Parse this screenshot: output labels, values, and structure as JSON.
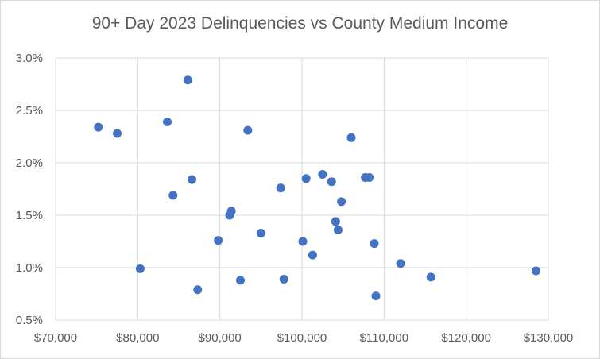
{
  "chart_data": {
    "type": "scatter",
    "title": "90+ Day 2023 Delinquencies vs County Medium Income",
    "xlabel": "",
    "ylabel": "",
    "xlim": [
      70000,
      130000
    ],
    "ylim": [
      0.005,
      0.03
    ],
    "x_ticks": [
      70000,
      80000,
      90000,
      100000,
      110000,
      120000,
      130000
    ],
    "x_tick_labels": [
      "$70,000",
      "$80,000",
      "$90,000",
      "$100,000",
      "$110,000",
      "$120,000",
      "$130,000"
    ],
    "y_ticks": [
      0.005,
      0.01,
      0.015,
      0.02,
      0.025,
      0.03
    ],
    "y_tick_labels": [
      "0.5%",
      "1.0%",
      "1.5%",
      "2.0%",
      "2.5%",
      "3.0%"
    ],
    "grid": true,
    "legend": "none",
    "colors": {
      "marker": "#4472c4",
      "grid": "#d9d9d9",
      "text": "#595959"
    },
    "points": [
      {
        "x": 75200,
        "y": 0.0234
      },
      {
        "x": 77500,
        "y": 0.0228
      },
      {
        "x": 80300,
        "y": 0.0099
      },
      {
        "x": 83600,
        "y": 0.0239
      },
      {
        "x": 84300,
        "y": 0.0169
      },
      {
        "x": 86100,
        "y": 0.0279
      },
      {
        "x": 86600,
        "y": 0.0184
      },
      {
        "x": 87300,
        "y": 0.0079
      },
      {
        "x": 89800,
        "y": 0.0126
      },
      {
        "x": 91200,
        "y": 0.015
      },
      {
        "x": 91400,
        "y": 0.0154
      },
      {
        "x": 92500,
        "y": 0.0088
      },
      {
        "x": 93400,
        "y": 0.0231
      },
      {
        "x": 95000,
        "y": 0.0133
      },
      {
        "x": 97400,
        "y": 0.0176
      },
      {
        "x": 97800,
        "y": 0.0089
      },
      {
        "x": 100100,
        "y": 0.0125
      },
      {
        "x": 100500,
        "y": 0.0185
      },
      {
        "x": 101300,
        "y": 0.0112
      },
      {
        "x": 102500,
        "y": 0.0189
      },
      {
        "x": 103600,
        "y": 0.0182
      },
      {
        "x": 104100,
        "y": 0.0144
      },
      {
        "x": 104400,
        "y": 0.0136
      },
      {
        "x": 104800,
        "y": 0.0163
      },
      {
        "x": 106000,
        "y": 0.0224
      },
      {
        "x": 107700,
        "y": 0.0186
      },
      {
        "x": 108200,
        "y": 0.0186
      },
      {
        "x": 108800,
        "y": 0.0123
      },
      {
        "x": 109000,
        "y": 0.0073
      },
      {
        "x": 112000,
        "y": 0.0104
      },
      {
        "x": 115700,
        "y": 0.0091
      },
      {
        "x": 128500,
        "y": 0.0097
      }
    ]
  }
}
